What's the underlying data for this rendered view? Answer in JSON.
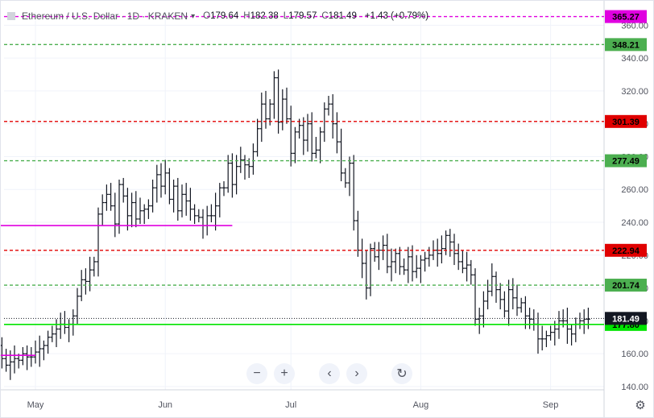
{
  "header": {
    "symbol": "Ethereum / U.S. Dollar",
    "interval": "1D",
    "exchange": "KRAKEN",
    "open_k": "O",
    "open_v": "179.64",
    "high_k": "H",
    "high_v": "182.38",
    "low_k": "L",
    "low_v": "179.57",
    "close_k": "C",
    "close_v": "181.49",
    "change": "+1.43 (+0.79%)"
  },
  "colors": {
    "up_candle": "#131722",
    "green_line": "#4caf50",
    "bright_green": "#00e400",
    "red_line": "#e00000",
    "magenta_line": "#e000e0",
    "grid": "#f0f3fa",
    "axis_text": "#50535e"
  },
  "chart_data": {
    "type": "ohlc",
    "ylim": [
      138,
      368
    ],
    "yticks": [
      "140.00",
      "160.00",
      "180.00",
      "200.00",
      "220.00",
      "240.00",
      "260.00",
      "280.00",
      "300.00",
      "320.00",
      "340.00",
      "360.00"
    ],
    "x_labels": [
      "May",
      "Jun",
      "Jul",
      "Aug",
      "Sep"
    ],
    "last_price": 181.49,
    "last_price_label": "181.49",
    "levels": [
      {
        "value": 365.27,
        "label": "365.27",
        "style": "dashed",
        "color": "#e000e0"
      },
      {
        "value": 348.21,
        "label": "348.21",
        "style": "dashed",
        "color": "#4caf50"
      },
      {
        "value": 301.39,
        "label": "301.39",
        "style": "dashed",
        "color": "#e00000"
      },
      {
        "value": 277.49,
        "label": "277.49",
        "style": "dashed",
        "color": "#4caf50"
      },
      {
        "value": 222.94,
        "label": "222.94",
        "style": "dashed",
        "color": "#e00000"
      },
      {
        "value": 201.74,
        "label": "201.74",
        "style": "dashed",
        "color": "#4caf50"
      },
      {
        "value": 177.8,
        "label": "177.80",
        "style": "solid",
        "color": "#00e400"
      }
    ],
    "segments": [
      {
        "value": 159,
        "from_day": -10,
        "to_day": 0,
        "color": "#e000e0"
      },
      {
        "value": 238,
        "from_day": -10,
        "to_day": 47,
        "color": "#e000e0"
      }
    ],
    "x_start_day": -10,
    "x_label_days": [
      {
        "label": "May",
        "day": 0
      },
      {
        "label": "Jun",
        "day": 31
      },
      {
        "label": "Jul",
        "day": 61
      },
      {
        "label": "Aug",
        "day": 92
      },
      {
        "label": "Sep",
        "day": 123
      }
    ],
    "closes": [
      172,
      165,
      157,
      153,
      155,
      157,
      156,
      160,
      158,
      158,
      161,
      163,
      165,
      170,
      172,
      175,
      178,
      176,
      178,
      183,
      195,
      205,
      204,
      211,
      216,
      245,
      252,
      257,
      250,
      239,
      263,
      256,
      244,
      252,
      242,
      247,
      248,
      250,
      261,
      269,
      262,
      270,
      254,
      262,
      247,
      257,
      253,
      248,
      244,
      243,
      238,
      244,
      244,
      250,
      261,
      261,
      276,
      263,
      274,
      278,
      275,
      274,
      283,
      297,
      312,
      303,
      312,
      328,
      301,
      315,
      303,
      282,
      295,
      299,
      290,
      300,
      282,
      284,
      295,
      309,
      312,
      300,
      289,
      270,
      264,
      276,
      241,
      223,
      215,
      200,
      224,
      219,
      223,
      226,
      213,
      216,
      221,
      213,
      211,
      219,
      210,
      212,
      217,
      218,
      220,
      223,
      221,
      224,
      232,
      228,
      221,
      216,
      212,
      214,
      208,
      181,
      183,
      192,
      198,
      207,
      199,
      193,
      186,
      199,
      194,
      188,
      191,
      183,
      181,
      178,
      169,
      169,
      171,
      173,
      175,
      180,
      180,
      175,
      172,
      178,
      180,
      181,
      181
    ]
  },
  "zoom": {
    "zoom_out": "−",
    "zoom_in": "+",
    "scroll_left": "‹",
    "scroll_right": "›",
    "reset": "↻"
  }
}
